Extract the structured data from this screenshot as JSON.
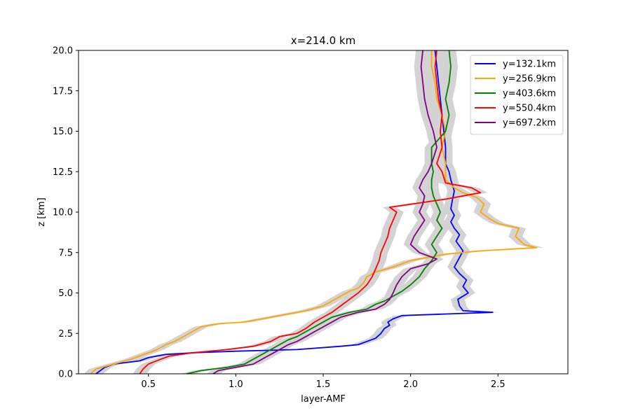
{
  "chart_data": {
    "type": "line",
    "title": "x=214.0 km",
    "xlabel": "layer-AMF",
    "ylabel": "z [km]",
    "xlim": [
      0.1,
      2.9
    ],
    "ylim": [
      0,
      20
    ],
    "xticks": [
      {
        "value": 0.5,
        "label": "0.5"
      },
      {
        "value": 1.0,
        "label": "1.0"
      },
      {
        "value": 1.5,
        "label": "1.5"
      },
      {
        "value": 2.0,
        "label": "2.0"
      },
      {
        "value": 2.5,
        "label": "2.5"
      }
    ],
    "yticks": [
      {
        "value": 0,
        "label": "0.0"
      },
      {
        "value": 2.5,
        "label": "2.5"
      },
      {
        "value": 5,
        "label": "5.0"
      },
      {
        "value": 7.5,
        "label": "7.5"
      },
      {
        "value": 10,
        "label": "10.0"
      },
      {
        "value": 12.5,
        "label": "12.5"
      },
      {
        "value": 15,
        "label": "15.0"
      },
      {
        "value": 17.5,
        "label": "17.5"
      },
      {
        "value": 20,
        "label": "20.0"
      }
    ],
    "grid": false,
    "legend_position": "top-right",
    "uncertainty_band_color": "#d3d3d3",
    "uncertainty_half_width": 0.04,
    "series": [
      {
        "name": "y=132.1km",
        "color": "#0000ff",
        "points": [
          [
            0.2,
            0.0
          ],
          [
            0.25,
            0.4
          ],
          [
            0.3,
            0.6
          ],
          [
            0.45,
            0.8
          ],
          [
            0.5,
            1.0
          ],
          [
            0.6,
            1.2
          ],
          [
            0.75,
            1.3
          ],
          [
            1.0,
            1.4
          ],
          [
            1.35,
            1.5
          ],
          [
            1.6,
            1.7
          ],
          [
            1.7,
            1.8
          ],
          [
            1.75,
            2.0
          ],
          [
            1.8,
            2.2
          ],
          [
            1.83,
            2.5
          ],
          [
            1.85,
            2.8
          ],
          [
            1.88,
            3.0
          ],
          [
            1.87,
            3.2
          ],
          [
            1.9,
            3.4
          ],
          [
            1.95,
            3.6
          ],
          [
            2.47,
            3.8
          ],
          [
            2.3,
            3.9
          ],
          [
            2.28,
            4.2
          ],
          [
            2.27,
            4.6
          ],
          [
            2.33,
            5.0
          ],
          [
            2.3,
            5.4
          ],
          [
            2.32,
            5.8
          ],
          [
            2.28,
            6.2
          ],
          [
            2.25,
            6.6
          ],
          [
            2.27,
            7.0
          ],
          [
            2.3,
            7.6
          ],
          [
            2.26,
            8.2
          ],
          [
            2.28,
            8.6
          ],
          [
            2.25,
            9.0
          ],
          [
            2.23,
            9.4
          ],
          [
            2.25,
            9.8
          ],
          [
            2.23,
            10.2
          ],
          [
            2.24,
            10.8
          ],
          [
            2.25,
            11.3
          ],
          [
            2.23,
            12.0
          ],
          [
            2.22,
            12.5
          ],
          [
            2.2,
            13.0
          ],
          [
            2.2,
            14.0
          ],
          [
            2.19,
            15.0
          ],
          [
            2.18,
            16.0
          ],
          [
            2.17,
            17.0
          ],
          [
            2.16,
            18.0
          ],
          [
            2.15,
            19.0
          ],
          [
            2.14,
            20.0
          ]
        ]
      },
      {
        "name": "y=256.9km",
        "color": "#ffa500",
        "points": [
          [
            0.17,
            0.0
          ],
          [
            0.2,
            0.3
          ],
          [
            0.3,
            0.6
          ],
          [
            0.4,
            0.9
          ],
          [
            0.45,
            1.1
          ],
          [
            0.5,
            1.3
          ],
          [
            0.55,
            1.5
          ],
          [
            0.6,
            1.8
          ],
          [
            0.65,
            2.0
          ],
          [
            0.7,
            2.3
          ],
          [
            0.75,
            2.6
          ],
          [
            0.8,
            2.9
          ],
          [
            0.9,
            3.1
          ],
          [
            1.05,
            3.2
          ],
          [
            1.15,
            3.4
          ],
          [
            1.3,
            3.7
          ],
          [
            1.4,
            3.9
          ],
          [
            1.5,
            4.2
          ],
          [
            1.55,
            4.5
          ],
          [
            1.6,
            4.8
          ],
          [
            1.65,
            5.1
          ],
          [
            1.7,
            5.3
          ],
          [
            1.73,
            5.6
          ],
          [
            1.75,
            6.0
          ],
          [
            1.8,
            6.3
          ],
          [
            1.9,
            6.6
          ],
          [
            2.0,
            7.0
          ],
          [
            2.2,
            7.4
          ],
          [
            2.4,
            7.6
          ],
          [
            2.72,
            7.8
          ],
          [
            2.65,
            8.0
          ],
          [
            2.6,
            8.5
          ],
          [
            2.62,
            9.0
          ],
          [
            2.5,
            9.3
          ],
          [
            2.45,
            9.6
          ],
          [
            2.4,
            10.0
          ],
          [
            2.42,
            10.5
          ],
          [
            2.38,
            10.9
          ],
          [
            2.3,
            11.2
          ],
          [
            2.25,
            11.5
          ],
          [
            2.2,
            12.0
          ],
          [
            2.2,
            13.0
          ],
          [
            2.18,
            14.0
          ],
          [
            2.2,
            15.0
          ],
          [
            2.18,
            16.0
          ],
          [
            2.15,
            17.0
          ],
          [
            2.14,
            18.0
          ],
          [
            2.12,
            19.0
          ],
          [
            2.12,
            20.0
          ]
        ]
      },
      {
        "name": "y=403.6km",
        "color": "#008000",
        "points": [
          [
            0.72,
            0.0
          ],
          [
            0.8,
            0.2
          ],
          [
            0.95,
            0.4
          ],
          [
            1.05,
            0.6
          ],
          [
            1.1,
            0.9
          ],
          [
            1.15,
            1.2
          ],
          [
            1.2,
            1.5
          ],
          [
            1.25,
            1.8
          ],
          [
            1.3,
            2.1
          ],
          [
            1.35,
            2.3
          ],
          [
            1.4,
            2.6
          ],
          [
            1.45,
            2.9
          ],
          [
            1.5,
            3.2
          ],
          [
            1.55,
            3.5
          ],
          [
            1.65,
            3.8
          ],
          [
            1.75,
            4.0
          ],
          [
            1.8,
            4.3
          ],
          [
            1.85,
            4.5
          ],
          [
            1.9,
            4.8
          ],
          [
            1.95,
            5.1
          ],
          [
            2.0,
            5.5
          ],
          [
            2.05,
            6.0
          ],
          [
            2.08,
            6.5
          ],
          [
            2.12,
            7.0
          ],
          [
            2.15,
            7.5
          ],
          [
            2.12,
            8.0
          ],
          [
            2.15,
            8.5
          ],
          [
            2.18,
            9.0
          ],
          [
            2.15,
            9.5
          ],
          [
            2.17,
            10.0
          ],
          [
            2.15,
            10.5
          ],
          [
            2.13,
            11.0
          ],
          [
            2.12,
            11.5
          ],
          [
            2.12,
            12.0
          ],
          [
            2.13,
            12.5
          ],
          [
            2.12,
            13.0
          ],
          [
            2.12,
            14.0
          ],
          [
            2.2,
            15.0
          ],
          [
            2.22,
            16.0
          ],
          [
            2.2,
            17.0
          ],
          [
            2.22,
            18.0
          ],
          [
            2.23,
            19.0
          ],
          [
            2.22,
            20.0
          ]
        ]
      },
      {
        "name": "y=550.4km",
        "color": "#ff0000",
        "points": [
          [
            0.45,
            0.0
          ],
          [
            0.47,
            0.3
          ],
          [
            0.5,
            0.6
          ],
          [
            0.57,
            0.9
          ],
          [
            0.62,
            1.1
          ],
          [
            0.75,
            1.3
          ],
          [
            0.95,
            1.5
          ],
          [
            1.1,
            1.7
          ],
          [
            1.2,
            2.0
          ],
          [
            1.25,
            2.3
          ],
          [
            1.35,
            2.5
          ],
          [
            1.4,
            2.8
          ],
          [
            1.45,
            3.2
          ],
          [
            1.5,
            3.5
          ],
          [
            1.55,
            3.8
          ],
          [
            1.6,
            4.2
          ],
          [
            1.65,
            4.6
          ],
          [
            1.7,
            5.0
          ],
          [
            1.75,
            5.5
          ],
          [
            1.78,
            6.0
          ],
          [
            1.8,
            6.5
          ],
          [
            1.82,
            7.0
          ],
          [
            1.83,
            7.5
          ],
          [
            1.85,
            8.0
          ],
          [
            1.87,
            8.5
          ],
          [
            1.88,
            9.0
          ],
          [
            1.9,
            9.5
          ],
          [
            1.92,
            10.0
          ],
          [
            1.88,
            10.3
          ],
          [
            2.2,
            10.8
          ],
          [
            2.4,
            11.2
          ],
          [
            2.35,
            11.5
          ],
          [
            2.2,
            11.8
          ],
          [
            2.18,
            12.5
          ],
          [
            2.15,
            13.0
          ],
          [
            2.18,
            14.0
          ],
          [
            2.17,
            15.0
          ],
          [
            2.18,
            16.0
          ],
          [
            2.16,
            17.0
          ],
          [
            2.15,
            18.0
          ],
          [
            2.14,
            19.0
          ],
          [
            2.15,
            20.0
          ]
        ]
      },
      {
        "name": "y=697.2km",
        "color": "#800080",
        "points": [
          [
            0.87,
            0.0
          ],
          [
            0.9,
            0.2
          ],
          [
            1.0,
            0.4
          ],
          [
            1.1,
            0.6
          ],
          [
            1.15,
            0.9
          ],
          [
            1.2,
            1.2
          ],
          [
            1.25,
            1.5
          ],
          [
            1.3,
            1.8
          ],
          [
            1.35,
            2.0
          ],
          [
            1.4,
            2.3
          ],
          [
            1.45,
            2.6
          ],
          [
            1.5,
            2.9
          ],
          [
            1.55,
            3.2
          ],
          [
            1.6,
            3.5
          ],
          [
            1.7,
            3.8
          ],
          [
            1.8,
            4.0
          ],
          [
            1.85,
            4.3
          ],
          [
            1.88,
            4.6
          ],
          [
            1.9,
            5.0
          ],
          [
            1.92,
            5.5
          ],
          [
            1.95,
            6.0
          ],
          [
            2.0,
            6.5
          ],
          [
            2.1,
            6.8
          ],
          [
            2.15,
            7.1
          ],
          [
            2.05,
            7.5
          ],
          [
            2.0,
            8.0
          ],
          [
            2.02,
            8.5
          ],
          [
            2.05,
            9.0
          ],
          [
            2.08,
            9.5
          ],
          [
            2.05,
            10.0
          ],
          [
            2.07,
            10.5
          ],
          [
            2.08,
            11.0
          ],
          [
            2.05,
            11.5
          ],
          [
            2.07,
            12.0
          ],
          [
            2.1,
            12.5
          ],
          [
            2.12,
            13.0
          ],
          [
            2.15,
            14.0
          ],
          [
            2.13,
            15.0
          ],
          [
            2.1,
            16.0
          ],
          [
            2.08,
            17.0
          ],
          [
            2.07,
            18.0
          ],
          [
            2.06,
            19.0
          ],
          [
            2.07,
            20.0
          ]
        ]
      }
    ]
  }
}
